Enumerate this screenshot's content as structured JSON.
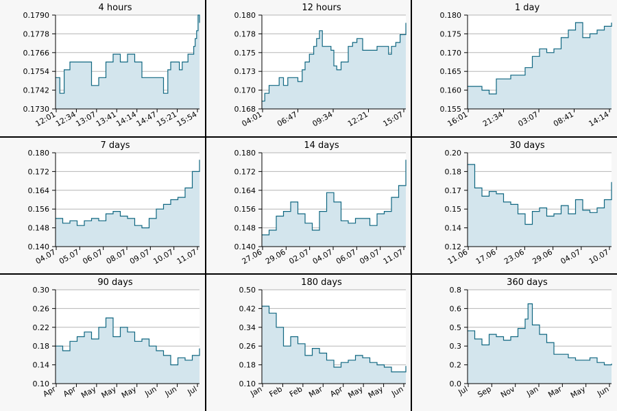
{
  "colors": {
    "line": "#0f6680",
    "fill": "#d3e5ed",
    "grid": "#b5b5b5",
    "panel_bg": "#f7f7f7",
    "plot_bg": "#ffffff",
    "frame": "#000000"
  },
  "chart_data": [
    {
      "type": "area",
      "title": "4 hours",
      "ylim": [
        0.173,
        0.179
      ],
      "decimals": 4,
      "grid": true,
      "x_ticks": [
        "12:01",
        "12:34",
        "13:07",
        "13:41",
        "14:14",
        "14:47",
        "15:21",
        "15:54"
      ],
      "x": [
        0,
        0.03,
        0.06,
        0.1,
        0.13,
        0.16,
        0.2,
        0.25,
        0.3,
        0.35,
        0.4,
        0.45,
        0.5,
        0.55,
        0.6,
        0.66,
        0.72,
        0.75,
        0.78,
        0.8,
        0.83,
        0.86,
        0.88,
        0.9,
        0.92,
        0.94,
        0.96,
        0.97,
        0.98,
        0.99,
        1.0
      ],
      "y": [
        0.175,
        0.174,
        0.1755,
        0.176,
        0.176,
        0.176,
        0.176,
        0.1745,
        0.175,
        0.176,
        0.1765,
        0.176,
        0.1765,
        0.176,
        0.175,
        0.175,
        0.175,
        0.174,
        0.1755,
        0.176,
        0.176,
        0.1755,
        0.176,
        0.176,
        0.1765,
        0.1765,
        0.177,
        0.1775,
        0.178,
        0.179,
        0.1785
      ]
    },
    {
      "type": "area",
      "title": "12 hours",
      "ylim": [
        0.168,
        0.18
      ],
      "decimals": 3,
      "grid": true,
      "x_ticks": [
        "04:01",
        "06:47",
        "09:34",
        "12:21",
        "15:07"
      ],
      "x": [
        0,
        0.02,
        0.05,
        0.08,
        0.12,
        0.15,
        0.18,
        0.22,
        0.25,
        0.28,
        0.3,
        0.33,
        0.36,
        0.38,
        0.4,
        0.42,
        0.45,
        0.48,
        0.5,
        0.52,
        0.55,
        0.6,
        0.63,
        0.66,
        0.7,
        0.75,
        0.8,
        0.85,
        0.88,
        0.9,
        0.93,
        0.96,
        1.0
      ],
      "y": [
        0.169,
        0.17,
        0.171,
        0.171,
        0.172,
        0.171,
        0.172,
        0.172,
        0.1715,
        0.173,
        0.174,
        0.175,
        0.176,
        0.177,
        0.178,
        0.176,
        0.176,
        0.1755,
        0.1735,
        0.173,
        0.174,
        0.176,
        0.1765,
        0.177,
        0.1755,
        0.1755,
        0.176,
        0.176,
        0.175,
        0.176,
        0.1765,
        0.1775,
        0.179
      ]
    },
    {
      "type": "area",
      "title": "1 day",
      "ylim": [
        0.155,
        0.18
      ],
      "decimals": 3,
      "grid": true,
      "x_ticks": [
        "16:01",
        "21:34",
        "03:07",
        "08:41",
        "14:14"
      ],
      "x": [
        0,
        0.05,
        0.1,
        0.15,
        0.2,
        0.25,
        0.3,
        0.35,
        0.4,
        0.45,
        0.5,
        0.55,
        0.6,
        0.65,
        0.7,
        0.75,
        0.8,
        0.85,
        0.9,
        0.95,
        1.0
      ],
      "y": [
        0.161,
        0.161,
        0.16,
        0.159,
        0.163,
        0.163,
        0.164,
        0.164,
        0.166,
        0.169,
        0.171,
        0.17,
        0.171,
        0.174,
        0.176,
        0.178,
        0.174,
        0.175,
        0.176,
        0.177,
        0.178
      ]
    },
    {
      "type": "area",
      "title": "7 days",
      "ylim": [
        0.14,
        0.18
      ],
      "decimals": 3,
      "grid": true,
      "x_ticks": [
        "04.07",
        "05.07",
        "06.07",
        "08.07",
        "09.07",
        "10.07",
        "11.07"
      ],
      "x": [
        0,
        0.05,
        0.1,
        0.15,
        0.2,
        0.25,
        0.3,
        0.35,
        0.4,
        0.45,
        0.5,
        0.55,
        0.6,
        0.65,
        0.7,
        0.75,
        0.8,
        0.85,
        0.9,
        0.95,
        1.0
      ],
      "y": [
        0.152,
        0.15,
        0.151,
        0.149,
        0.151,
        0.152,
        0.151,
        0.154,
        0.155,
        0.153,
        0.152,
        0.149,
        0.148,
        0.152,
        0.156,
        0.158,
        0.16,
        0.161,
        0.165,
        0.172,
        0.177
      ]
    },
    {
      "type": "area",
      "title": "14 days",
      "ylim": [
        0.14,
        0.18
      ],
      "decimals": 3,
      "grid": true,
      "x_ticks": [
        "27.06",
        "29.06",
        "02.07",
        "04.07",
        "06.07",
        "09.07",
        "11.07"
      ],
      "x": [
        0,
        0.05,
        0.1,
        0.15,
        0.2,
        0.25,
        0.3,
        0.35,
        0.4,
        0.45,
        0.5,
        0.55,
        0.6,
        0.65,
        0.7,
        0.75,
        0.8,
        0.85,
        0.9,
        0.95,
        1.0
      ],
      "y": [
        0.145,
        0.147,
        0.153,
        0.155,
        0.159,
        0.154,
        0.15,
        0.147,
        0.155,
        0.163,
        0.159,
        0.151,
        0.15,
        0.152,
        0.152,
        0.149,
        0.154,
        0.155,
        0.161,
        0.166,
        0.177
      ]
    },
    {
      "type": "area",
      "title": "30 days",
      "ylim": [
        0.12,
        0.2
      ],
      "decimals": 2,
      "grid": true,
      "x_ticks": [
        "11.06",
        "17.06",
        "23.06",
        "29.06",
        "04.07",
        "10.07"
      ],
      "x": [
        0,
        0.05,
        0.1,
        0.15,
        0.2,
        0.25,
        0.3,
        0.35,
        0.4,
        0.45,
        0.5,
        0.55,
        0.6,
        0.65,
        0.7,
        0.75,
        0.8,
        0.85,
        0.9,
        0.95,
        1.0
      ],
      "y": [
        0.19,
        0.17,
        0.163,
        0.167,
        0.165,
        0.158,
        0.156,
        0.148,
        0.139,
        0.15,
        0.153,
        0.146,
        0.148,
        0.155,
        0.148,
        0.16,
        0.151,
        0.149,
        0.153,
        0.16,
        0.175
      ]
    },
    {
      "type": "area",
      "title": "90 days",
      "ylim": [
        0.1,
        0.3
      ],
      "decimals": 2,
      "grid": true,
      "x_ticks": [
        "Apr",
        "Apr",
        "May",
        "May",
        "May",
        "Jun",
        "Jun",
        "Jul"
      ],
      "x": [
        0,
        0.05,
        0.1,
        0.15,
        0.2,
        0.25,
        0.3,
        0.35,
        0.4,
        0.45,
        0.5,
        0.55,
        0.6,
        0.65,
        0.7,
        0.75,
        0.8,
        0.85,
        0.9,
        0.95,
        1.0
      ],
      "y": [
        0.18,
        0.17,
        0.19,
        0.2,
        0.21,
        0.195,
        0.22,
        0.24,
        0.2,
        0.22,
        0.21,
        0.19,
        0.195,
        0.18,
        0.17,
        0.16,
        0.14,
        0.155,
        0.15,
        0.16,
        0.175
      ]
    },
    {
      "type": "area",
      "title": "180 days",
      "ylim": [
        0.1,
        0.5
      ],
      "decimals": 2,
      "grid": true,
      "x_ticks": [
        "Jan",
        "Feb",
        "Feb",
        "Mar",
        "Apr",
        "May",
        "May",
        "Jun"
      ],
      "x": [
        0,
        0.05,
        0.1,
        0.15,
        0.2,
        0.25,
        0.3,
        0.35,
        0.4,
        0.45,
        0.5,
        0.55,
        0.6,
        0.65,
        0.7,
        0.75,
        0.8,
        0.85,
        0.9,
        0.95,
        1.0
      ],
      "y": [
        0.43,
        0.4,
        0.34,
        0.26,
        0.3,
        0.27,
        0.22,
        0.25,
        0.23,
        0.2,
        0.17,
        0.19,
        0.2,
        0.22,
        0.21,
        0.19,
        0.18,
        0.17,
        0.15,
        0.15,
        0.175
      ]
    },
    {
      "type": "area",
      "title": "360 days",
      "ylim": [
        0.0,
        0.8
      ],
      "decimals": 1,
      "grid": true,
      "x_ticks": [
        "Jul",
        "Sep",
        "Nov",
        "Jan",
        "Mar",
        "May",
        "Jun"
      ],
      "x": [
        0,
        0.05,
        0.1,
        0.15,
        0.2,
        0.25,
        0.3,
        0.35,
        0.4,
        0.42,
        0.45,
        0.5,
        0.55,
        0.6,
        0.65,
        0.7,
        0.75,
        0.8,
        0.85,
        0.9,
        0.95,
        1.0
      ],
      "y": [
        0.45,
        0.38,
        0.33,
        0.42,
        0.4,
        0.37,
        0.4,
        0.47,
        0.55,
        0.68,
        0.5,
        0.42,
        0.35,
        0.25,
        0.25,
        0.22,
        0.2,
        0.2,
        0.22,
        0.18,
        0.16,
        0.17
      ]
    }
  ]
}
